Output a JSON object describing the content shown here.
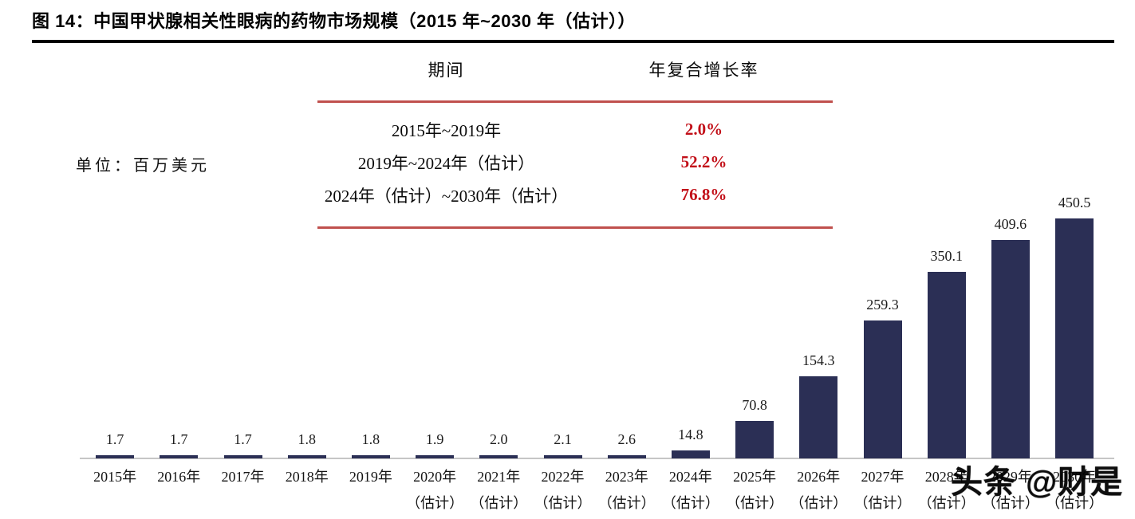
{
  "title": "图 14：中国甲状腺相关性眼病的药物市场规模（2015 年~2030 年（估计））",
  "unit_label": "单位：百万美元",
  "cagr_table": {
    "headers": [
      "期间",
      "年复合增长率"
    ],
    "rows": [
      {
        "period": "2015年~2019年",
        "cagr": "2.0%"
      },
      {
        "period": "2019年~2024年（估计）",
        "cagr": "52.2%"
      },
      {
        "period": "2024年（估计）~2030年（估计）",
        "cagr": "76.8%"
      }
    ]
  },
  "watermark": "头条 @财是",
  "colors": {
    "bar": "#2b2f55",
    "table_rule_red": "#c0504d",
    "cagr_text_red": "#c21019",
    "title_rule": "#000000",
    "axis_line": "#c6c6c6"
  },
  "chart_data": {
    "type": "bar",
    "title": "中国甲状腺相关性眼病的药物市场规模（2015年~2030年（估计））",
    "xlabel": "",
    "ylabel": "百万美元",
    "ylim": [
      0,
      470
    ],
    "grid": false,
    "legend": "none",
    "categories": [
      "2015年",
      "2016年",
      "2017年",
      "2018年",
      "2019年",
      "2020年（估计）",
      "2021年（估计）",
      "2022年（估计）",
      "2023年（估计）",
      "2024年（估计）",
      "2025年（估计）",
      "2026年（估计）",
      "2027年（估计）",
      "2028年（估计）",
      "2029年（估计）",
      "2030年（估计）"
    ],
    "values": [
      1.7,
      1.7,
      1.7,
      1.8,
      1.8,
      1.9,
      2.0,
      2.1,
      2.6,
      14.8,
      70.8,
      154.3,
      259.3,
      350.1,
      409.6,
      450.5
    ],
    "data_labels": [
      "1.7",
      "1.7",
      "1.7",
      "1.8",
      "1.8",
      "1.9",
      "2.0",
      "2.1",
      "2.6",
      "14.8",
      "70.8",
      "154.3",
      "259.3",
      "350.1",
      "409.6",
      "450.5"
    ]
  }
}
